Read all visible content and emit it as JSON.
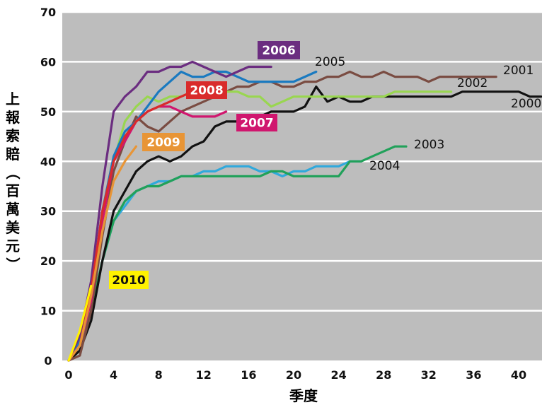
{
  "chart_data": {
    "type": "line",
    "xlabel": "季度",
    "ylabel": "上報索賠（百萬美元）",
    "xlim": [
      -1,
      42
    ],
    "ylim": [
      0,
      70
    ],
    "xticks": [
      "0",
      "4",
      "8",
      "12",
      "16",
      "20",
      "24",
      "28",
      "32",
      "36",
      "40"
    ],
    "yticks": [
      "0",
      "10",
      "20",
      "30",
      "40",
      "50",
      "60",
      "70"
    ],
    "grid": "horizontal",
    "background": "#bdbdbd",
    "series": [
      {
        "name": "2000",
        "color": "#111111",
        "label_style": "plain",
        "x": [
          0,
          1,
          2,
          3,
          4,
          5,
          6,
          7,
          8,
          9,
          10,
          11,
          12,
          13,
          14,
          15,
          16,
          17,
          18,
          19,
          20,
          21,
          22,
          23,
          24,
          25,
          26,
          27,
          28,
          29,
          30,
          31,
          32,
          33,
          34,
          35,
          36,
          37,
          38,
          39,
          40,
          41,
          42
        ],
        "y": [
          0,
          2,
          8,
          20,
          30,
          34,
          38,
          40,
          41,
          40,
          41,
          43,
          44,
          47,
          48,
          48,
          48,
          49,
          50,
          50,
          50,
          51,
          55,
          52,
          53,
          52,
          52,
          53,
          53,
          53,
          53,
          53,
          53,
          53,
          53,
          54,
          54,
          54,
          54,
          54,
          54,
          53,
          53
        ]
      },
      {
        "name": "2001",
        "color": "#7a4c42",
        "label_style": "plain",
        "x": [
          0,
          1,
          2,
          3,
          4,
          5,
          6,
          7,
          8,
          9,
          10,
          11,
          12,
          13,
          14,
          15,
          16,
          17,
          18,
          19,
          20,
          21,
          22,
          23,
          24,
          25,
          26,
          27,
          28,
          29,
          30,
          31,
          32,
          33,
          34,
          35,
          36,
          37,
          38
        ],
        "y": [
          0,
          1,
          10,
          25,
          38,
          44,
          49,
          47,
          46,
          48,
          50,
          51,
          52,
          53,
          54,
          55,
          55,
          56,
          56,
          55,
          55,
          56,
          56,
          57,
          57,
          58,
          57,
          57,
          58,
          57,
          57,
          57,
          56,
          57,
          57,
          57,
          57,
          57,
          57
        ]
      },
      {
        "name": "2002",
        "color": "#99d650",
        "label_style": "plain",
        "x": [
          0,
          1,
          2,
          3,
          4,
          5,
          6,
          7,
          8,
          9,
          10,
          11,
          12,
          13,
          14,
          15,
          16,
          17,
          18,
          19,
          20,
          21,
          22,
          23,
          24,
          25,
          26,
          27,
          28,
          29,
          30,
          31,
          32,
          33,
          34
        ],
        "y": [
          0,
          3,
          12,
          30,
          40,
          48,
          51,
          53,
          52,
          53,
          53,
          54,
          55,
          55,
          54,
          54,
          53,
          53,
          51,
          52,
          53,
          53,
          53,
          53,
          53,
          53,
          53,
          53,
          53,
          54,
          54,
          54,
          54,
          54,
          54
        ]
      },
      {
        "name": "2003",
        "color": "#21a15a",
        "label_style": "plain",
        "x": [
          0,
          1,
          2,
          3,
          4,
          5,
          6,
          7,
          8,
          9,
          10,
          11,
          12,
          13,
          14,
          15,
          16,
          17,
          18,
          19,
          20,
          21,
          22,
          23,
          24,
          25,
          26,
          27,
          28,
          29,
          30
        ],
        "y": [
          0,
          2,
          10,
          20,
          28,
          32,
          34,
          35,
          35,
          36,
          37,
          37,
          37,
          37,
          37,
          37,
          37,
          37,
          38,
          38,
          37,
          37,
          37,
          37,
          37,
          40,
          40,
          41,
          42,
          43,
          43
        ]
      },
      {
        "name": "2004",
        "color": "#30a9dc",
        "label_style": "plain",
        "x": [
          0,
          1,
          2,
          3,
          4,
          5,
          6,
          7,
          8,
          9,
          10,
          11,
          12,
          13,
          14,
          15,
          16,
          17,
          18,
          19,
          20,
          21,
          22,
          23,
          24,
          25,
          26
        ],
        "y": [
          0,
          3,
          10,
          20,
          28,
          31,
          34,
          35,
          36,
          36,
          37,
          37,
          38,
          38,
          39,
          39,
          39,
          38,
          38,
          37,
          38,
          38,
          39,
          39,
          39,
          40,
          40
        ]
      },
      {
        "name": "2005",
        "color": "#1a7ac0",
        "label_style": "plain",
        "x": [
          0,
          1,
          2,
          3,
          4,
          5,
          6,
          7,
          8,
          9,
          10,
          11,
          12,
          13,
          14,
          15,
          16,
          17,
          18,
          19,
          20,
          21,
          22
        ],
        "y": [
          0,
          4,
          14,
          30,
          41,
          46,
          48,
          51,
          54,
          56,
          58,
          57,
          57,
          58,
          58,
          57,
          56,
          56,
          56,
          56,
          56,
          57,
          58
        ]
      },
      {
        "name": "2006",
        "color": "#6b2d80",
        "label_style": "boxed",
        "x": [
          0,
          1,
          2,
          3,
          4,
          5,
          6,
          7,
          8,
          9,
          10,
          11,
          12,
          13,
          14,
          15,
          16,
          17,
          18
        ],
        "y": [
          0,
          5,
          16,
          35,
          50,
          53,
          55,
          58,
          58,
          59,
          59,
          60,
          59,
          58,
          57,
          58,
          59,
          59,
          59
        ]
      },
      {
        "name": "2007",
        "color": "#d0166e",
        "label_style": "boxed",
        "x": [
          0,
          1,
          2,
          3,
          4,
          5,
          6,
          7,
          8,
          9,
          10,
          11,
          12,
          13,
          14
        ],
        "y": [
          0,
          3,
          12,
          28,
          40,
          44,
          48,
          50,
          51,
          51,
          50,
          49,
          49,
          49,
          50
        ]
      },
      {
        "name": "2008",
        "color": "#d92b2b",
        "label_style": "boxed",
        "x": [
          0,
          1,
          2,
          3,
          4,
          5,
          6,
          7,
          8,
          9,
          10,
          11
        ],
        "y": [
          0,
          3,
          14,
          30,
          40,
          45,
          48,
          50,
          51,
          52,
          53,
          54
        ]
      },
      {
        "name": "2009",
        "color": "#e89536",
        "label_style": "boxed",
        "x": [
          0,
          1,
          2,
          3,
          4,
          5,
          6
        ],
        "y": [
          0,
          3,
          13,
          26,
          36,
          40,
          43
        ]
      },
      {
        "name": "2010",
        "color": "#fff200",
        "label_style": "boxed",
        "x": [
          0,
          1,
          2
        ],
        "y": [
          0,
          6,
          15
        ]
      }
    ]
  }
}
